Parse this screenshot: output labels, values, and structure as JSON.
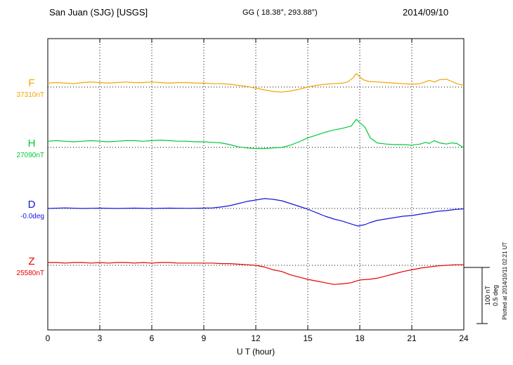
{
  "header": {
    "station": "San Juan (SJG)  [USGS]",
    "coords": "GG ( 18.38°, 293.88°)",
    "date": "2014/09/10"
  },
  "footer_note": "Plotted at 2014/10/11 02:21 UT",
  "chart_data": {
    "type": "line",
    "title": "San Juan (SJG) [USGS] magnetogram 2014/09/10",
    "xlabel": "U T (hour)",
    "ylabel": "",
    "xlim": [
      0,
      24
    ],
    "xticks": [
      0,
      3,
      6,
      9,
      12,
      15,
      18,
      21,
      24
    ],
    "grid": "dotted vertical lines at each 3-hour tick; dotted horizontal baseline for each trace",
    "legend_position": "left margin, one colored label per trace",
    "scale_bar": {
      "nT": 100,
      "deg": 0.5,
      "nT_label": "100 nT",
      "deg_label": "0.5 deg"
    },
    "series": [
      {
        "name": "F",
        "label": "F",
        "baseline_label": "37310nT",
        "baseline_value": 37310,
        "unit": "nT",
        "color": "#f0a500",
        "points": [
          [
            0,
            7
          ],
          [
            0.5,
            8
          ],
          [
            1,
            7
          ],
          [
            1.5,
            6
          ],
          [
            2,
            8
          ],
          [
            2.5,
            9
          ],
          [
            3,
            8
          ],
          [
            3.5,
            7
          ],
          [
            4,
            8
          ],
          [
            4.5,
            9
          ],
          [
            5,
            8
          ],
          [
            5.5,
            8
          ],
          [
            6,
            9
          ],
          [
            6.5,
            8
          ],
          [
            7,
            7
          ],
          [
            7.5,
            8
          ],
          [
            8,
            8
          ],
          [
            8.5,
            7
          ],
          [
            9,
            7
          ],
          [
            9.5,
            6
          ],
          [
            10,
            6
          ],
          [
            10.5,
            5
          ],
          [
            11,
            3
          ],
          [
            11.5,
            1
          ],
          [
            12,
            -2
          ],
          [
            12.5,
            -5
          ],
          [
            13,
            -8
          ],
          [
            13.5,
            -9
          ],
          [
            14,
            -7
          ],
          [
            14.5,
            -4
          ],
          [
            15,
            0
          ],
          [
            15.5,
            3
          ],
          [
            16,
            5
          ],
          [
            16.5,
            6
          ],
          [
            17,
            7
          ],
          [
            17.3,
            9
          ],
          [
            17.6,
            16
          ],
          [
            17.8,
            24
          ],
          [
            18,
            18
          ],
          [
            18.2,
            13
          ],
          [
            18.5,
            10
          ],
          [
            19,
            9
          ],
          [
            19.5,
            8
          ],
          [
            20,
            7
          ],
          [
            20.5,
            6
          ],
          [
            21,
            5
          ],
          [
            21.5,
            6
          ],
          [
            22,
            12
          ],
          [
            22.3,
            9
          ],
          [
            22.6,
            13
          ],
          [
            23,
            14
          ],
          [
            23.3,
            10
          ],
          [
            23.6,
            6
          ],
          [
            24,
            3
          ]
        ]
      },
      {
        "name": "H",
        "label": "H",
        "baseline_label": "27090nT",
        "baseline_value": 27090,
        "unit": "nT",
        "color": "#00c83c",
        "points": [
          [
            0,
            11
          ],
          [
            0.5,
            12
          ],
          [
            1,
            11
          ],
          [
            1.5,
            10
          ],
          [
            2,
            11
          ],
          [
            2.5,
            12
          ],
          [
            3,
            11
          ],
          [
            3.5,
            10
          ],
          [
            4,
            11
          ],
          [
            4.5,
            12
          ],
          [
            5,
            12
          ],
          [
            5.5,
            11
          ],
          [
            6,
            12
          ],
          [
            6.5,
            13
          ],
          [
            7,
            12
          ],
          [
            7.5,
            11
          ],
          [
            8,
            11
          ],
          [
            8.5,
            10
          ],
          [
            9,
            10
          ],
          [
            9.5,
            9
          ],
          [
            10,
            8
          ],
          [
            10.5,
            5
          ],
          [
            11,
            1
          ],
          [
            11.5,
            -1
          ],
          [
            12,
            -2
          ],
          [
            12.5,
            -2
          ],
          [
            13,
            -1
          ],
          [
            13.5,
            0
          ],
          [
            14,
            4
          ],
          [
            14.5,
            10
          ],
          [
            15,
            17
          ],
          [
            15.5,
            22
          ],
          [
            16,
            27
          ],
          [
            16.5,
            31
          ],
          [
            17,
            34
          ],
          [
            17.5,
            38
          ],
          [
            17.8,
            50
          ],
          [
            18,
            44
          ],
          [
            18.3,
            36
          ],
          [
            18.6,
            17
          ],
          [
            19,
            8
          ],
          [
            19.5,
            6
          ],
          [
            20,
            5
          ],
          [
            20.5,
            5
          ],
          [
            21,
            4
          ],
          [
            21.5,
            6
          ],
          [
            21.8,
            9
          ],
          [
            22,
            7
          ],
          [
            22.3,
            12
          ],
          [
            22.6,
            8
          ],
          [
            23,
            6
          ],
          [
            23.3,
            8
          ],
          [
            23.6,
            7
          ],
          [
            24,
            -1
          ]
        ]
      },
      {
        "name": "D",
        "label": "D",
        "baseline_label": "-0.0deg",
        "baseline_value": 0.0,
        "unit": "deg",
        "color": "#1414dc",
        "points": [
          [
            0,
            0
          ],
          [
            1,
            0.005
          ],
          [
            2,
            0
          ],
          [
            3,
            0.003
          ],
          [
            4,
            0
          ],
          [
            5,
            0.003
          ],
          [
            6,
            0
          ],
          [
            7,
            0.003
          ],
          [
            8,
            0.001
          ],
          [
            9,
            0.003
          ],
          [
            9.5,
            0.005
          ],
          [
            10,
            0.013
          ],
          [
            10.5,
            0.025
          ],
          [
            11,
            0.044
          ],
          [
            11.5,
            0.063
          ],
          [
            12,
            0.075
          ],
          [
            12.5,
            0.088
          ],
          [
            13,
            0.081
          ],
          [
            13.5,
            0.069
          ],
          [
            14,
            0.044
          ],
          [
            14.5,
            0.019
          ],
          [
            15,
            -0.006
          ],
          [
            15.5,
            -0.038
          ],
          [
            16,
            -0.069
          ],
          [
            16.5,
            -0.094
          ],
          [
            17,
            -0.113
          ],
          [
            17.5,
            -0.138
          ],
          [
            17.9,
            -0.156
          ],
          [
            18.3,
            -0.144
          ],
          [
            18.6,
            -0.125
          ],
          [
            19,
            -0.106
          ],
          [
            19.5,
            -0.094
          ],
          [
            20,
            -0.081
          ],
          [
            20.5,
            -0.069
          ],
          [
            21,
            -0.063
          ],
          [
            21.5,
            -0.05
          ],
          [
            22,
            -0.038
          ],
          [
            22.5,
            -0.025
          ],
          [
            23,
            -0.019
          ],
          [
            23.5,
            -0.009
          ],
          [
            24,
            -0.003
          ]
        ]
      },
      {
        "name": "Z",
        "label": "Z",
        "baseline_label": "25580nT",
        "baseline_value": 25580,
        "unit": "nT",
        "color": "#e60000",
        "points": [
          [
            0,
            5
          ],
          [
            0.5,
            5
          ],
          [
            1,
            4
          ],
          [
            1.5,
            5
          ],
          [
            2,
            5
          ],
          [
            2.5,
            4
          ],
          [
            3,
            5
          ],
          [
            3.5,
            4
          ],
          [
            4,
            5
          ],
          [
            4.5,
            5
          ],
          [
            5,
            4
          ],
          [
            5.5,
            5
          ],
          [
            6,
            4
          ],
          [
            6.5,
            5
          ],
          [
            7,
            5
          ],
          [
            7.5,
            4
          ],
          [
            8,
            4
          ],
          [
            8.5,
            4
          ],
          [
            9,
            4
          ],
          [
            9.5,
            4
          ],
          [
            10,
            3
          ],
          [
            10.5,
            3
          ],
          [
            11,
            2
          ],
          [
            11.5,
            1
          ],
          [
            12,
            0
          ],
          [
            12.5,
            -3
          ],
          [
            13,
            -8
          ],
          [
            13.5,
            -11
          ],
          [
            14,
            -17
          ],
          [
            14.5,
            -21
          ],
          [
            15,
            -25
          ],
          [
            15.5,
            -28
          ],
          [
            16,
            -31
          ],
          [
            16.5,
            -34
          ],
          [
            17,
            -33
          ],
          [
            17.5,
            -31
          ],
          [
            18,
            -26
          ],
          [
            18.5,
            -25
          ],
          [
            19,
            -23
          ],
          [
            19.5,
            -19
          ],
          [
            20,
            -15
          ],
          [
            20.5,
            -11
          ],
          [
            21,
            -8
          ],
          [
            21.5,
            -5
          ],
          [
            22,
            -3
          ],
          [
            22.5,
            -1
          ],
          [
            23,
            0
          ],
          [
            23.5,
            1
          ],
          [
            24,
            1
          ]
        ]
      }
    ]
  }
}
